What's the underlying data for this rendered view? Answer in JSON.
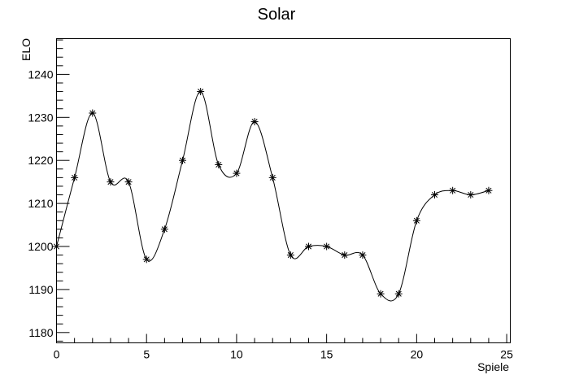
{
  "chart_data": {
    "type": "line",
    "title": "Solar",
    "xlabel": "Spiele",
    "ylabel": "ELO",
    "xlim": [
      0,
      25.2
    ],
    "ylim": [
      1177.6,
      1248.3
    ],
    "x_ticks": [
      0,
      5,
      10,
      15,
      20,
      25
    ],
    "x_tick_labels": [
      "0",
      "5",
      "10",
      "15",
      "20",
      "25"
    ],
    "y_ticks": [
      1180,
      1190,
      1200,
      1210,
      1220,
      1230,
      1240
    ],
    "y_tick_labels": [
      "1180",
      "1190",
      "1200",
      "1210",
      "1220",
      "1230",
      "1240"
    ],
    "x_minor_step": 1,
    "y_minor_step": 2,
    "grid": false,
    "legend": "none",
    "marker": "asterisk",
    "line_color": "#000000",
    "x": [
      0,
      1,
      2,
      3,
      4,
      5,
      6,
      7,
      8,
      9,
      10,
      11,
      12,
      13,
      14,
      15,
      16,
      17,
      18,
      19,
      20,
      21,
      22,
      23,
      24
    ],
    "values": [
      1200,
      1216,
      1231,
      1215,
      1215,
      1197,
      1204,
      1220,
      1236,
      1219,
      1217,
      1229,
      1216,
      1198,
      1200,
      1200,
      1198,
      1198,
      1189,
      1189,
      1206,
      1212,
      1213,
      1212,
      1213
    ]
  }
}
